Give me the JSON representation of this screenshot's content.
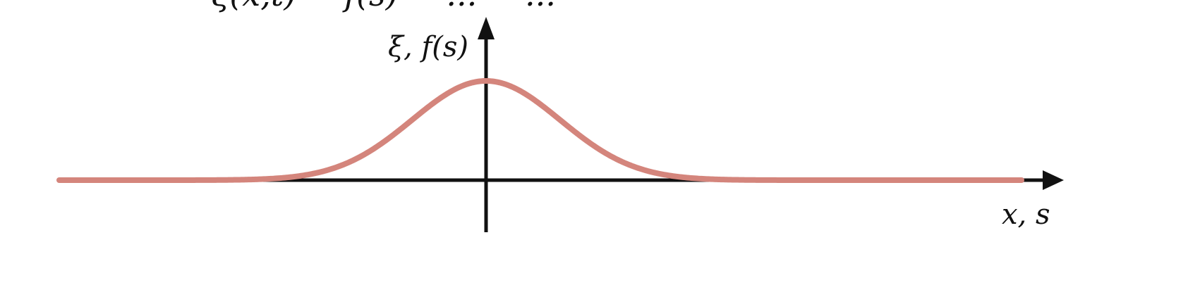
{
  "diagram": {
    "top_fragment_text": "ξ(x,t) = f(s) = ... = ...",
    "y_axis_label": "ξ, f(s)",
    "x_axis_label": "x, s",
    "curve_color": "#d4857c",
    "axis_color": "#111111",
    "curve_shape": "gaussian-pulse"
  }
}
